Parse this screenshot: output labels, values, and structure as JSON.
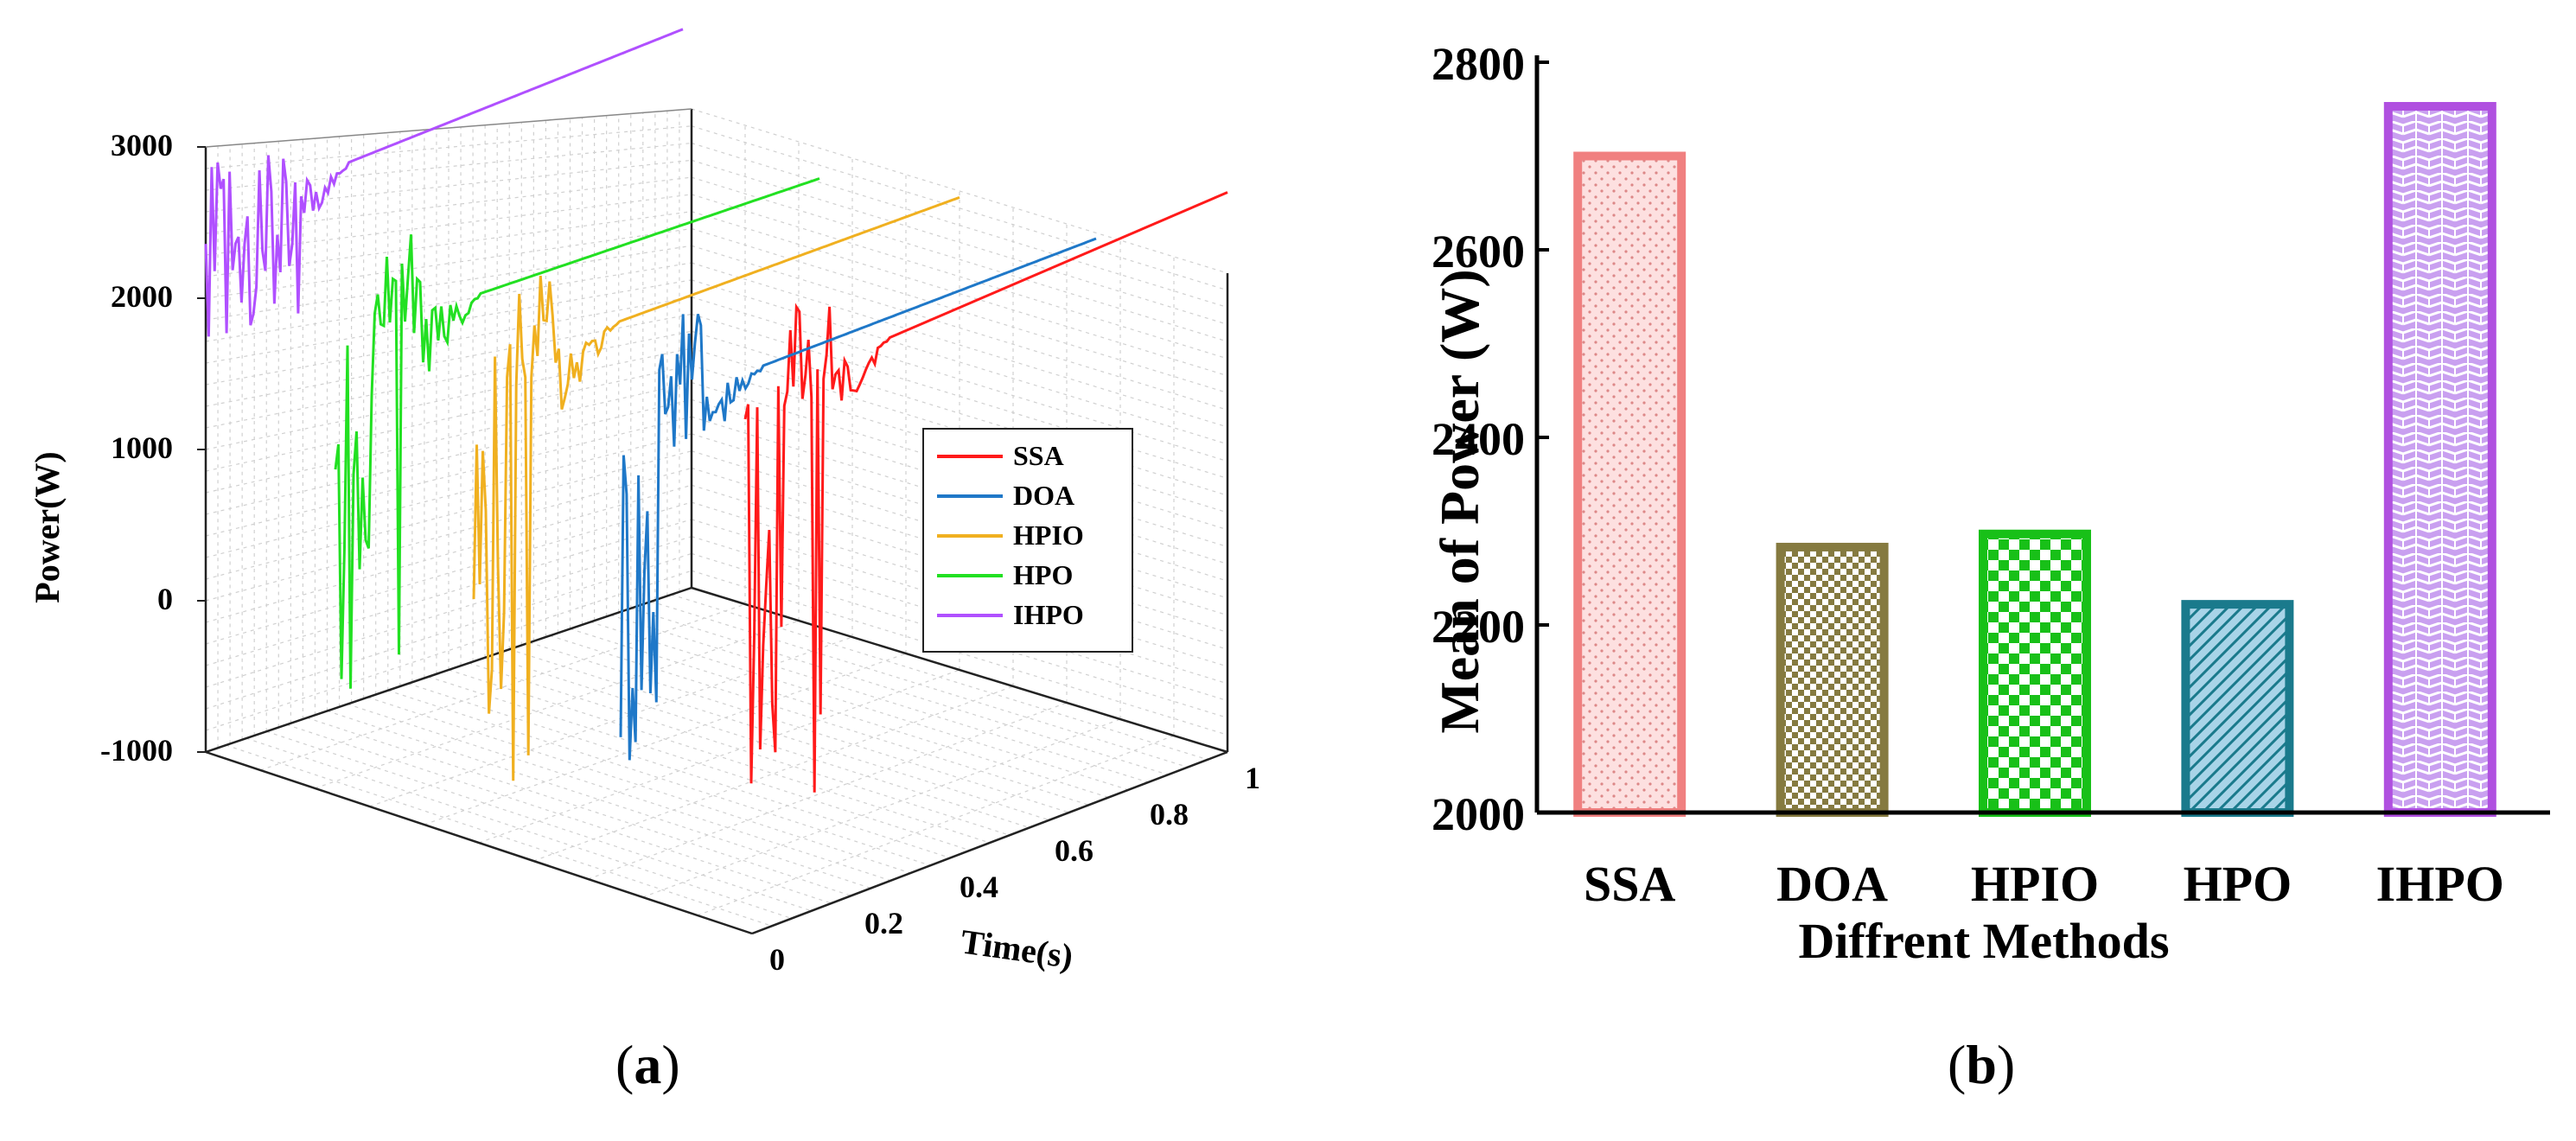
{
  "panel_labels": {
    "a": "a",
    "b": "b"
  },
  "chart_data": [
    {
      "type": "line",
      "panel": "a",
      "title": "",
      "zlabel": "Power(W)",
      "xlabel": "Time(s)",
      "z_ticks": [
        "-1000",
        "0",
        "1000",
        "2000",
        "3000"
      ],
      "x_ticks": [
        "0",
        "0.2",
        "0.4",
        "0.6",
        "0.8",
        "1"
      ],
      "zlim": [
        -1000,
        3000
      ],
      "xlim": [
        0,
        1
      ],
      "grid": true,
      "legend_position": "right",
      "colors": {
        "SSA": "#ff1a1a",
        "DOA": "#1f78c8",
        "HPIO": "#f0b020",
        "HPO": "#22e022",
        "IHPO": "#b050ff"
      },
      "series": [
        {
          "name": "SSA",
          "color": "#ff1a1a",
          "final_value": 2700
        },
        {
          "name": "DOA",
          "color": "#1f78c8",
          "final_value": 2280
        },
        {
          "name": "HPIO",
          "color": "#f0b020",
          "final_value": 2295
        },
        {
          "name": "HPO",
          "color": "#22e022",
          "final_value": 2220
        },
        {
          "name": "IHPO",
          "color": "#b050ff",
          "final_value": 2750
        }
      ]
    },
    {
      "type": "bar",
      "panel": "b",
      "title": "",
      "ylabel": "Mean of Power (W)",
      "xlabel": "Diffrent Methods",
      "categories": [
        "SSA",
        "DOA",
        "HPIO",
        "HPO",
        "IHPO"
      ],
      "values": [
        2700,
        2283,
        2297,
        2222,
        2753
      ],
      "ylim": [
        2000,
        2800
      ],
      "y_ticks": [
        "2000",
        "2200",
        "2400",
        "2600",
        "2800"
      ],
      "bar_colors": [
        "#f08080",
        "#857a40",
        "#18c018",
        "#1a7a8c",
        "#b050e0"
      ],
      "bar_fills": [
        "#fde0e0",
        "#857a40",
        "#18c018",
        "#a8d4e8",
        "#c9a0f0"
      ],
      "patterns": [
        "dots",
        "checker-small",
        "checker-large",
        "diagonal",
        "brick"
      ]
    }
  ]
}
